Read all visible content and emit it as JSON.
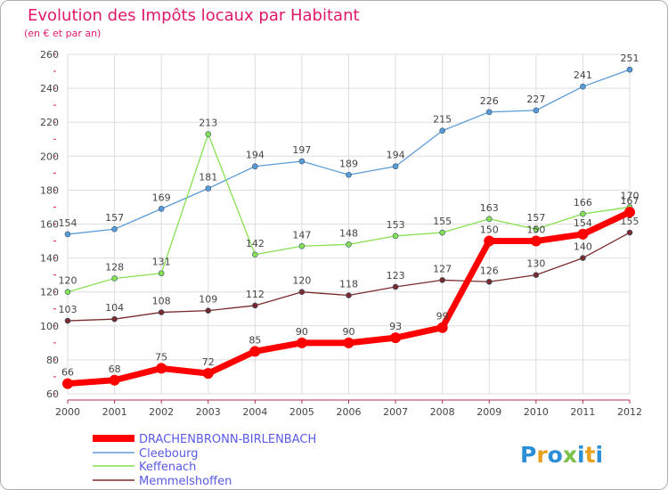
{
  "chart_data": {
    "type": "line",
    "title": "Evolution des Impôts locaux par Habitant",
    "subtitle": "(en € et par an)",
    "xlabel": "",
    "ylabel": "",
    "ylim": [
      60,
      260
    ],
    "y_ticks": [
      "60",
      "80",
      "100",
      "120",
      "140",
      "160",
      "180",
      "200",
      "220",
      "240",
      "260"
    ],
    "categories": [
      "2000",
      "2001",
      "2002",
      "2003",
      "2004",
      "2005",
      "2006",
      "2007",
      "2008",
      "2009",
      "2010",
      "2011",
      "2012"
    ],
    "series": [
      {
        "name": "DRACHENBRONN-BIRLENBACH",
        "color": "#ff0000",
        "values": [
          66,
          68,
          75,
          72,
          85,
          90,
          90,
          93,
          99,
          150,
          150,
          154,
          167
        ]
      },
      {
        "name": "Cleebourg",
        "color": "#5b9bd5",
        "values": [
          154,
          157,
          169,
          181,
          194,
          197,
          189,
          194,
          215,
          226,
          227,
          241,
          251
        ]
      },
      {
        "name": "Keffenach",
        "color": "#88e050",
        "values": [
          120,
          128,
          131,
          213,
          142,
          147,
          148,
          153,
          155,
          163,
          157,
          166,
          170
        ]
      },
      {
        "name": "Memmelshoffen",
        "color": "#7a2a2a",
        "values": [
          103,
          104,
          108,
          109,
          112,
          120,
          118,
          123,
          127,
          126,
          130,
          140,
          155
        ]
      }
    ],
    "legend_position": "bottom-left"
  },
  "logo": {
    "text": "Proxiti",
    "letter_colors": [
      "#2b8fd8",
      "#e8a020",
      "#2b8fd8",
      "#7cc24a",
      "#2b8fd8",
      "#e8a020",
      "#2b8fd8"
    ]
  }
}
